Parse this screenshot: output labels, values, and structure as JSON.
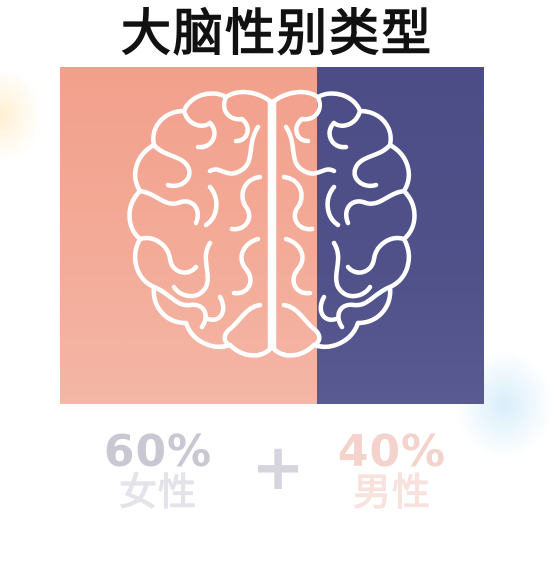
{
  "title": "大脑性别类型",
  "colors": {
    "female_side": "#f2a08c",
    "male_side": "#4c4c86",
    "brain_outline": "#ffffff"
  },
  "icon": "brain-icon",
  "stats": {
    "female": {
      "percent": "60%",
      "label": "女性"
    },
    "male": {
      "percent": "40%",
      "label": "男性"
    },
    "operator": "+"
  }
}
